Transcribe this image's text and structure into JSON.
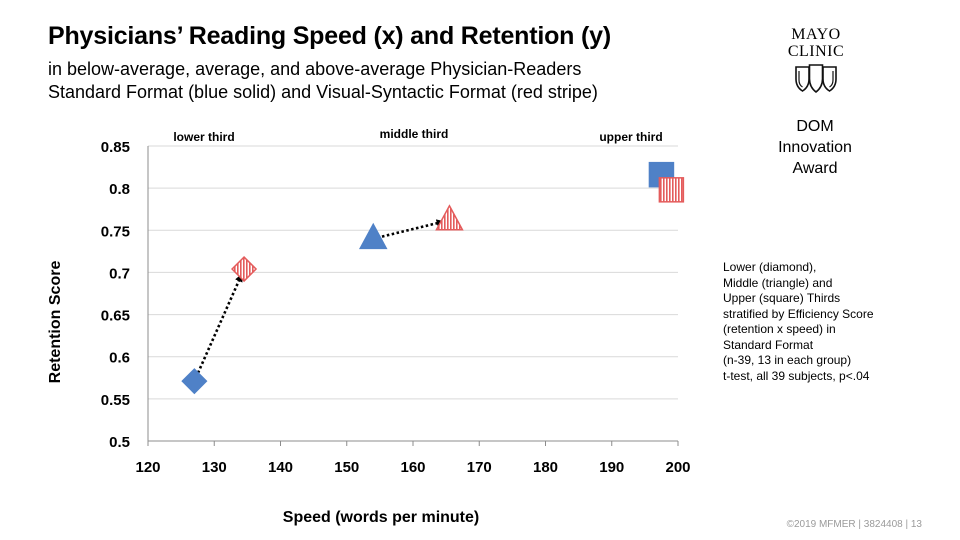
{
  "title": "Physicians’ Reading Speed (x) and Retention (y)",
  "subtitle_line1": "in below-average, average, and above-average Physician-Readers",
  "subtitle_line2": "Standard Format (blue solid) and Visual-Syntactic Format (red stripe)",
  "logo": {
    "line1": "MAYO",
    "line2": "CLINIC",
    "icon": "mayo-shields-icon"
  },
  "award": {
    "line1": "DOM",
    "line2": "Innovation",
    "line3": "Award"
  },
  "notes": [
    "Lower (diamond),",
    "Middle (triangle) and",
    "Upper (square) Thirds",
    "stratified by Efficiency Score",
    "(retention x speed) in",
    "Standard Format",
    "(n-39, 13 in each group)",
    "t-test, all 39 subjects, p<.04"
  ],
  "footer": "©2019 MFMER  |  3824408 | 13",
  "colors": {
    "standard": "#4f81c7",
    "visual_syntactic": "#e45c5c",
    "gridline": "#d9d9d9"
  },
  "chart_data": {
    "type": "scatter",
    "xlabel": "Speed (words per minute)",
    "ylabel": "Retention Score",
    "xlim": [
      120,
      200
    ],
    "ylim": [
      0.5,
      0.85
    ],
    "x_ticks": [
      "120",
      "130",
      "140",
      "150",
      "160",
      "170",
      "180",
      "190",
      "200"
    ],
    "y_ticks": [
      "0.5",
      "0.55",
      "0.6",
      "0.65",
      "0.7",
      "0.75",
      "0.8",
      "0.85"
    ],
    "grid": "horizontal",
    "group_labels": [
      "lower third",
      "middle third",
      "upper third"
    ],
    "points": [
      {
        "group": "lower third",
        "format": "standard",
        "marker": "diamond",
        "x": 127,
        "y": 0.571
      },
      {
        "group": "lower third",
        "format": "visual_syntactic",
        "marker": "diamond",
        "x": 134.5,
        "y": 0.704
      },
      {
        "group": "middle third",
        "format": "standard",
        "marker": "triangle",
        "x": 154,
        "y": 0.74
      },
      {
        "group": "middle third",
        "format": "visual_syntactic",
        "marker": "triangle",
        "x": 165.5,
        "y": 0.762
      },
      {
        "group": "upper third",
        "format": "standard",
        "marker": "square",
        "x": 197.5,
        "y": 0.816
      },
      {
        "group": "upper third",
        "format": "visual_syntactic",
        "marker": "square",
        "x": 199,
        "y": 0.798
      }
    ],
    "arrows": [
      {
        "from": [
          127,
          0.571
        ],
        "to": [
          134.5,
          0.704
        ]
      },
      {
        "from": [
          154,
          0.74
        ],
        "to": [
          165.5,
          0.762
        ]
      }
    ]
  }
}
